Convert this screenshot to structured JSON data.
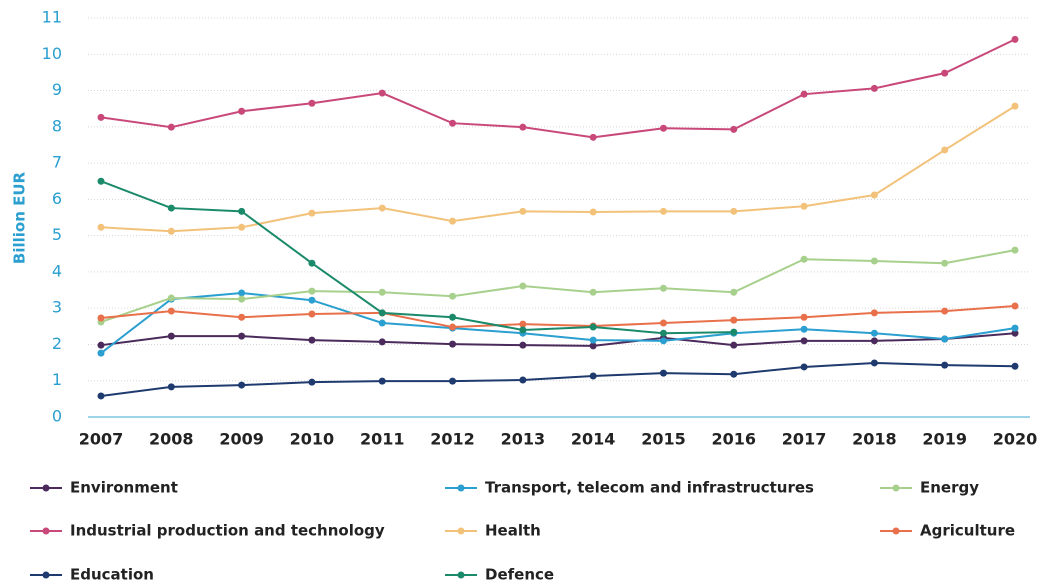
{
  "chart_data": {
    "type": "line",
    "y_label": "Billion EUR",
    "x": [
      2007,
      2008,
      2009,
      2010,
      2011,
      2012,
      2013,
      2014,
      2015,
      2016,
      2017,
      2018,
      2019,
      2020
    ],
    "xlim": [
      2007,
      2020
    ],
    "xticks": [
      2007,
      2008,
      2009,
      2010,
      2011,
      2012,
      2013,
      2014,
      2015,
      2016,
      2017,
      2018,
      2019,
      2020
    ],
    "ylim": [
      0,
      11
    ],
    "yticks": [
      0,
      1,
      2,
      3,
      4,
      5,
      6,
      7,
      8,
      9,
      10,
      11
    ],
    "grid": true,
    "legend": "bottom",
    "series": [
      {
        "name": "Environment",
        "color": "#4b2a5c",
        "values": [
          1.98,
          2.23,
          2.23,
          2.12,
          2.07,
          2.01,
          1.98,
          1.96,
          2.18,
          1.98,
          2.1,
          2.1,
          2.15,
          2.31
        ]
      },
      {
        "name": "Transport, telecom and infrastructures",
        "color": "#2a9fd0",
        "values": [
          1.76,
          3.25,
          3.42,
          3.22,
          2.59,
          2.45,
          2.31,
          2.12,
          2.1,
          2.31,
          2.42,
          2.31,
          2.15,
          2.45
        ]
      },
      {
        "name": "Energy",
        "color": "#a8d08d",
        "values": [
          2.62,
          3.28,
          3.25,
          3.47,
          3.44,
          3.33,
          3.61,
          3.44,
          3.55,
          3.44,
          4.35,
          4.3,
          4.24,
          4.6
        ]
      },
      {
        "name": "Industrial production and technology",
        "color": "#c9487a",
        "values": [
          8.26,
          7.99,
          8.43,
          8.65,
          8.93,
          8.1,
          7.99,
          7.71,
          7.96,
          7.93,
          8.9,
          9.06,
          9.48,
          10.41
        ]
      },
      {
        "name": "Health",
        "color": "#f2c27b",
        "values": [
          5.23,
          5.12,
          5.23,
          5.62,
          5.76,
          5.4,
          5.67,
          5.65,
          5.67,
          5.67,
          5.81,
          6.12,
          7.36,
          8.57
        ]
      },
      {
        "name": "Agriculture",
        "color": "#e8704a",
        "values": [
          2.73,
          2.92,
          2.75,
          2.84,
          2.87,
          2.48,
          2.56,
          2.51,
          2.59,
          2.67,
          2.75,
          2.87,
          2.92,
          3.06
        ]
      },
      {
        "name": "Education",
        "color": "#1e3a6e",
        "values": [
          0.58,
          0.83,
          0.88,
          0.96,
          0.99,
          0.99,
          1.02,
          1.13,
          1.21,
          1.18,
          1.38,
          1.49,
          1.43,
          1.4
        ]
      },
      {
        "name": "Defence",
        "color": "#1a8a6a",
        "values": [
          6.5,
          5.76,
          5.67,
          4.24,
          2.87,
          2.75,
          2.4,
          2.48,
          2.31,
          2.34,
          null,
          null,
          null,
          null
        ]
      }
    ]
  }
}
